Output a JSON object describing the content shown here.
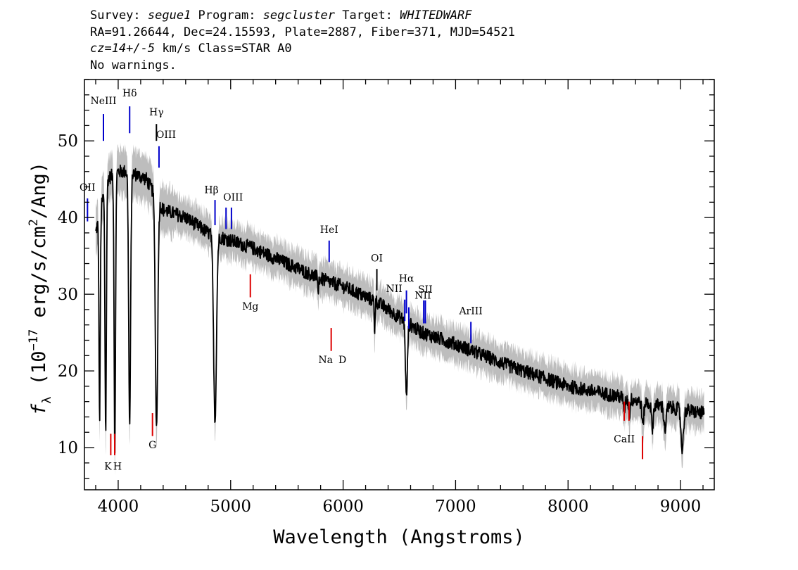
{
  "header": {
    "survey_label": "Survey: ",
    "survey": "segue1",
    "program_label": " Program: ",
    "program": "segcluster",
    "target_label": " Target: ",
    "target": "WHITEDWARF",
    "line2": "RA=91.26644, Dec=24.15593, Plate=2887, Fiber=371, MJD=54521",
    "cz": "cz=14+/-5",
    "line3_rest": " km/s Class=STAR A0",
    "line4": "No warnings."
  },
  "chart_data": {
    "type": "line",
    "xlabel": "Wavelength (Angstroms)",
    "ylabel_parts": {
      "f": "f",
      "lambda": "λ",
      "pre": " (10",
      "exp1": "−17",
      "mid": " erg/s/cm",
      "exp2": "2",
      "post": "/Ang)"
    },
    "xlim": [
      3700,
      9300
    ],
    "ylim": [
      4.5,
      58
    ],
    "xticks": [
      4000,
      5000,
      6000,
      7000,
      8000,
      9000
    ],
    "yticks": [
      10,
      20,
      30,
      40,
      50
    ],
    "series": [
      {
        "color": "#000000",
        "error_band_color": "#bdbdbd",
        "continuum": [
          [
            3800,
            38
          ],
          [
            3900,
            45
          ],
          [
            4000,
            46
          ],
          [
            4100,
            46
          ],
          [
            4250,
            45
          ],
          [
            4400,
            41
          ],
          [
            4600,
            40
          ],
          [
            4800,
            38
          ],
          [
            5000,
            37
          ],
          [
            5200,
            36
          ],
          [
            5500,
            34
          ],
          [
            5800,
            32
          ],
          [
            6000,
            31
          ],
          [
            6300,
            29
          ],
          [
            6500,
            27
          ],
          [
            6700,
            25
          ],
          [
            7000,
            23.5
          ],
          [
            7500,
            20.5
          ],
          [
            8000,
            18
          ],
          [
            8500,
            16.5
          ],
          [
            8800,
            15.5
          ],
          [
            9000,
            15
          ],
          [
            9200,
            14.5
          ]
        ],
        "absorption_lines": [
          [
            3835,
            27,
            8
          ],
          [
            3889,
            32,
            9
          ],
          [
            3970,
            36,
            9
          ],
          [
            4102,
            33,
            12
          ],
          [
            4341,
            30,
            15
          ],
          [
            4861,
            24,
            18
          ],
          [
            6563,
            10,
            12
          ],
          [
            5780,
            2,
            4
          ],
          [
            6280,
            4,
            5
          ],
          [
            8500,
            1.5,
            10
          ],
          [
            8545,
            2,
            10
          ],
          [
            8665,
            3,
            12
          ],
          [
            8750,
            3,
            12
          ],
          [
            8862,
            3,
            14
          ],
          [
            9015,
            5,
            16
          ],
          [
            9230,
            2,
            15
          ]
        ],
        "noise": 0.9
      }
    ],
    "line_markers": [
      {
        "label": "OII",
        "x": 3727,
        "color": "blue",
        "y1": 39.5,
        "y2": 42.5,
        "ly": 43.5,
        "dx": 0
      },
      {
        "label": "NeIII",
        "x": 3869,
        "color": "blue",
        "y1": 50,
        "y2": 53.5,
        "ly": 54.8,
        "dx": 0
      },
      {
        "label": "Hδ",
        "x": 4102,
        "color": "blue",
        "y1": 51,
        "y2": 54.5,
        "ly": 55.8,
        "dx": 0
      },
      {
        "label": "Hγ",
        "x": 4340,
        "color": "black",
        "y1": 50,
        "y2": 52.2,
        "ly": 53.3,
        "dx": 0
      },
      {
        "label": "OIII",
        "x": 4363,
        "color": "blue",
        "y1": 46.5,
        "y2": 49.3,
        "ly": 50.4,
        "dx": 10
      },
      {
        "label": "Hβ",
        "x": 4861,
        "color": "blue",
        "y1": 39,
        "y2": 42.3,
        "ly": 43.2,
        "dx": -5
      },
      {
        "label": "OIII",
        "x": 4959,
        "color": "blue",
        "y1": 38.5,
        "y2": 41.3,
        "ly": 42.2,
        "dx": 10
      },
      {
        "label": "OIII",
        "x": 5007,
        "color": "blue",
        "y1": 38.5,
        "y2": 41.3,
        "ly": null,
        "dx": 0
      },
      {
        "label": "HeI",
        "x": 5876,
        "color": "blue",
        "y1": 34.2,
        "y2": 37.0,
        "ly": 38.0,
        "dx": 0
      },
      {
        "label": "OI",
        "x": 6300,
        "color": "black",
        "y1": 30.5,
        "y2": 33.3,
        "ly": 34.3,
        "dx": 0
      },
      {
        "label": "NII",
        "x": 6548,
        "color": "blue",
        "y1": 26.5,
        "y2": 29.3,
        "ly": 30.3,
        "dx": -15
      },
      {
        "label": "Hα",
        "x": 6563,
        "color": "blue",
        "y1": 27.5,
        "y2": 30.5,
        "ly": 31.6,
        "dx": 0
      },
      {
        "label": "NII",
        "x": 6584,
        "color": "blue",
        "y1": 25.5,
        "y2": 28.3,
        "ly": 29.4,
        "dx": 20
      },
      {
        "label": "SII",
        "x": 6717,
        "color": "blue",
        "y1": 26.2,
        "y2": 29.2,
        "ly": null,
        "dx": 0
      },
      {
        "label": "SII",
        "x": 6731,
        "color": "blue",
        "y1": 26.2,
        "y2": 29.2,
        "ly": 30.2,
        "dx": 0
      },
      {
        "label": "ArIII",
        "x": 7136,
        "color": "blue",
        "y1": 23.6,
        "y2": 26.4,
        "ly": 27.4,
        "dx": 0
      },
      {
        "label": "K",
        "x": 3934,
        "color": "red",
        "y1": 9.0,
        "y2": 11.8,
        "ly": 7.1,
        "dx": -4
      },
      {
        "label": "H",
        "x": 3969,
        "color": "red",
        "y1": 9.0,
        "y2": 11.8,
        "ly": 7.1,
        "dx": 4
      },
      {
        "label": "G",
        "x": 4305,
        "color": "red",
        "y1": 11.5,
        "y2": 14.5,
        "ly": 9.9,
        "dx": 0
      },
      {
        "label": "Mg",
        "x": 5175,
        "color": "red",
        "y1": 29.6,
        "y2": 32.6,
        "ly": 28.0,
        "dx": 0
      },
      {
        "label": "Na",
        "x": 5894,
        "color": "red",
        "y1": 22.6,
        "y2": 25.6,
        "ly": 21.0,
        "dx": -8
      },
      {
        "label": "D",
        "x": 5894,
        "color": "red",
        "y1": null,
        "y2": null,
        "ly": 21.0,
        "dx": 16
      },
      {
        "label": "CaII",
        "x": 8500,
        "color": "red",
        "y1": 13.5,
        "y2": 16.0,
        "ly": 10.7,
        "dx": 0
      },
      {
        "label": "CaII",
        "x": 8542,
        "color": "red",
        "y1": 13.5,
        "y2": 16.0,
        "ly": null,
        "dx": 0
      },
      {
        "label": "CaII",
        "x": 8662,
        "color": "red",
        "y1": 8.5,
        "y2": 11.5,
        "ly": null,
        "dx": 0
      }
    ]
  }
}
